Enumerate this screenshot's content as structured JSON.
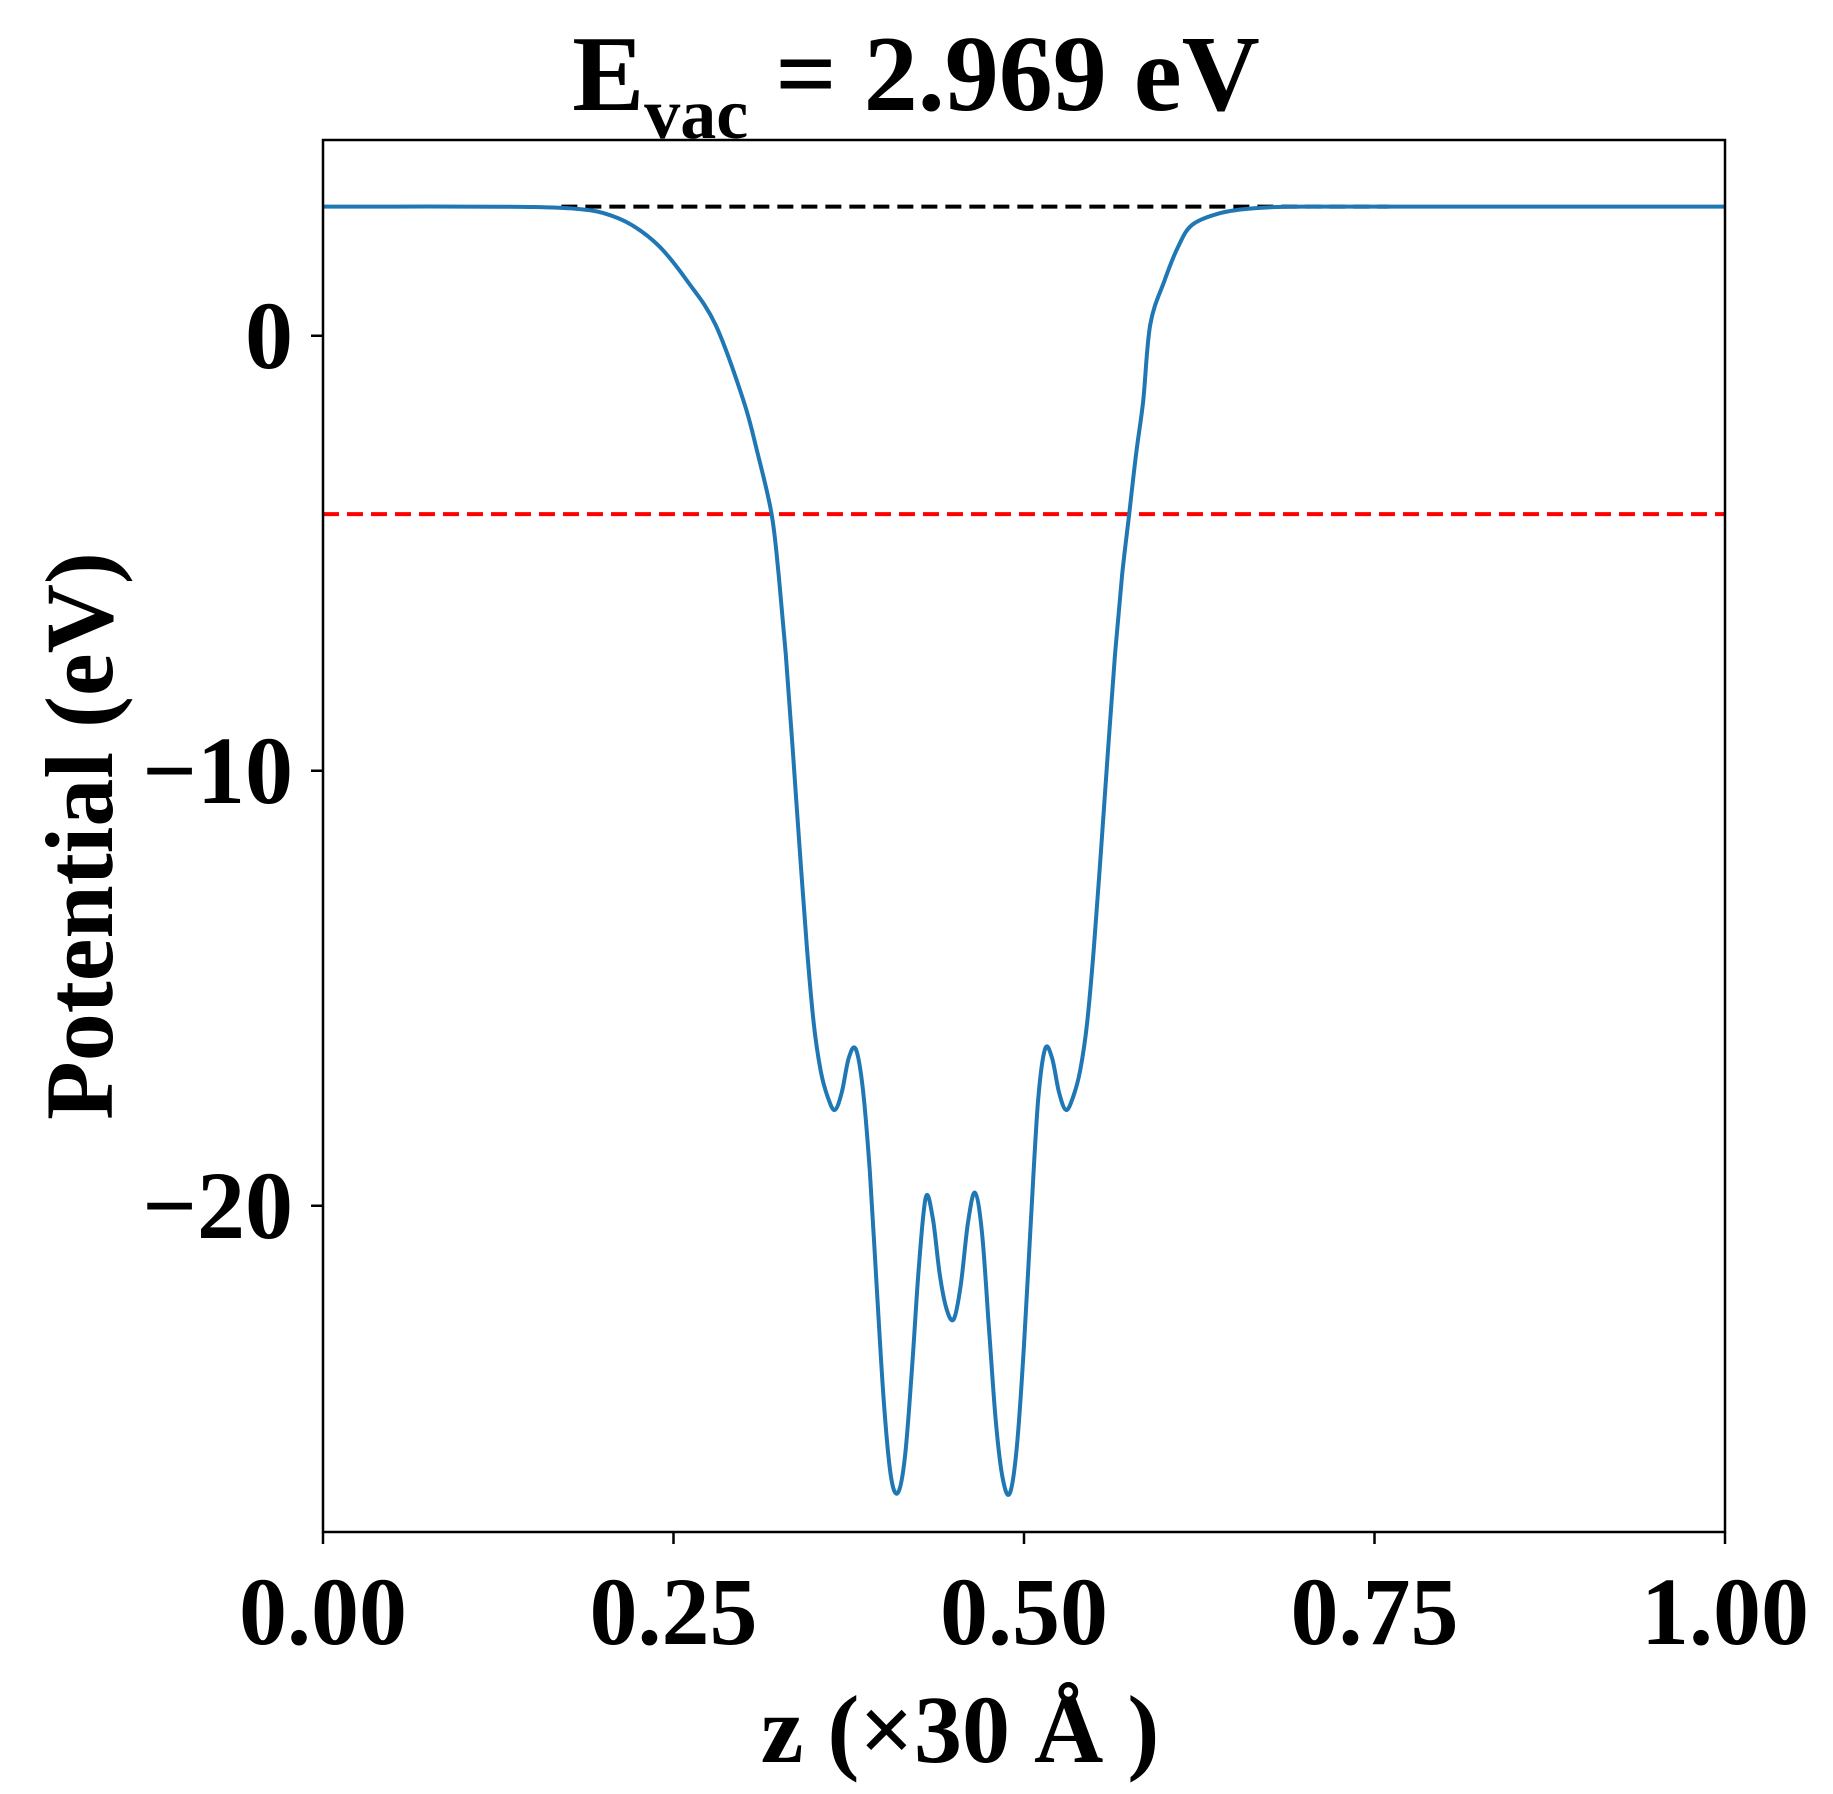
{
  "chart_data": {
    "type": "line",
    "title": {
      "main": "E",
      "subscript": "vac",
      "rest": " = 2.969 eV"
    },
    "xlabel": "z (×30 Å )",
    "ylabel": "Potential (eV)",
    "xlim": [
      0.0,
      1.0
    ],
    "ylim": [
      -27.5,
      4.5
    ],
    "xticks": [
      0.0,
      0.25,
      0.5,
      0.75,
      1.0
    ],
    "xtick_labels": [
      "0.00",
      "0.25",
      "0.50",
      "0.75",
      "1.00"
    ],
    "yticks": [
      0,
      -10,
      -20
    ],
    "ytick_labels": [
      "0",
      "−10",
      "−20"
    ],
    "grid": false,
    "reference_lines": [
      {
        "y": 2.969,
        "color": "#000000",
        "style": "dashed",
        "xrange": [
          0.17,
          0.76
        ]
      },
      {
        "y": -4.1,
        "color": "#ff0000",
        "style": "dashed",
        "xrange": [
          0.0,
          1.0
        ]
      }
    ],
    "series": [
      {
        "color": "#1f77b4",
        "x": [
          0.0,
          0.05,
          0.1,
          0.15,
          0.18,
          0.2,
          0.22,
          0.24,
          0.26,
          0.28,
          0.3,
          0.31,
          0.32,
          0.325,
          0.33,
          0.335,
          0.34,
          0.345,
          0.35,
          0.355,
          0.36,
          0.365,
          0.37,
          0.375,
          0.38,
          0.385,
          0.39,
          0.395,
          0.4,
          0.405,
          0.41,
          0.415,
          0.42,
          0.425,
          0.43,
          0.435,
          0.44,
          0.445,
          0.45,
          0.455,
          0.46,
          0.465,
          0.47,
          0.475,
          0.48,
          0.485,
          0.49,
          0.495,
          0.5,
          0.505,
          0.51,
          0.515,
          0.52,
          0.525,
          0.53,
          0.535,
          0.54,
          0.545,
          0.55,
          0.555,
          0.56,
          0.565,
          0.57,
          0.575,
          0.58,
          0.585,
          0.59,
          0.6,
          0.61,
          0.62,
          0.64,
          0.66,
          0.68,
          0.7,
          0.72,
          0.75,
          0.8,
          0.85,
          0.9,
          0.95,
          1.0
        ],
        "y": [
          2.97,
          2.97,
          2.97,
          2.96,
          2.92,
          2.82,
          2.55,
          2.05,
          1.25,
          0.25,
          -1.5,
          -2.7,
          -4.1,
          -5.5,
          -7.3,
          -9.5,
          -11.8,
          -14.0,
          -15.8,
          -16.9,
          -17.5,
          -17.8,
          -17.4,
          -16.6,
          -16.4,
          -17.3,
          -19.2,
          -21.9,
          -24.5,
          -26.2,
          -26.6,
          -25.8,
          -23.8,
          -21.4,
          -19.8,
          -20.3,
          -21.6,
          -22.4,
          -22.6,
          -21.8,
          -20.4,
          -19.7,
          -20.6,
          -22.8,
          -25.0,
          -26.3,
          -26.6,
          -25.5,
          -23.2,
          -20.3,
          -17.6,
          -16.4,
          -16.6,
          -17.4,
          -17.8,
          -17.5,
          -16.9,
          -15.8,
          -14.0,
          -11.8,
          -9.5,
          -7.3,
          -5.5,
          -4.1,
          -2.7,
          -1.5,
          0.25,
          1.25,
          2.05,
          2.55,
          2.82,
          2.92,
          2.96,
          2.97,
          2.97,
          2.97,
          2.97,
          2.97,
          2.97,
          2.97,
          2.97
        ]
      }
    ]
  }
}
